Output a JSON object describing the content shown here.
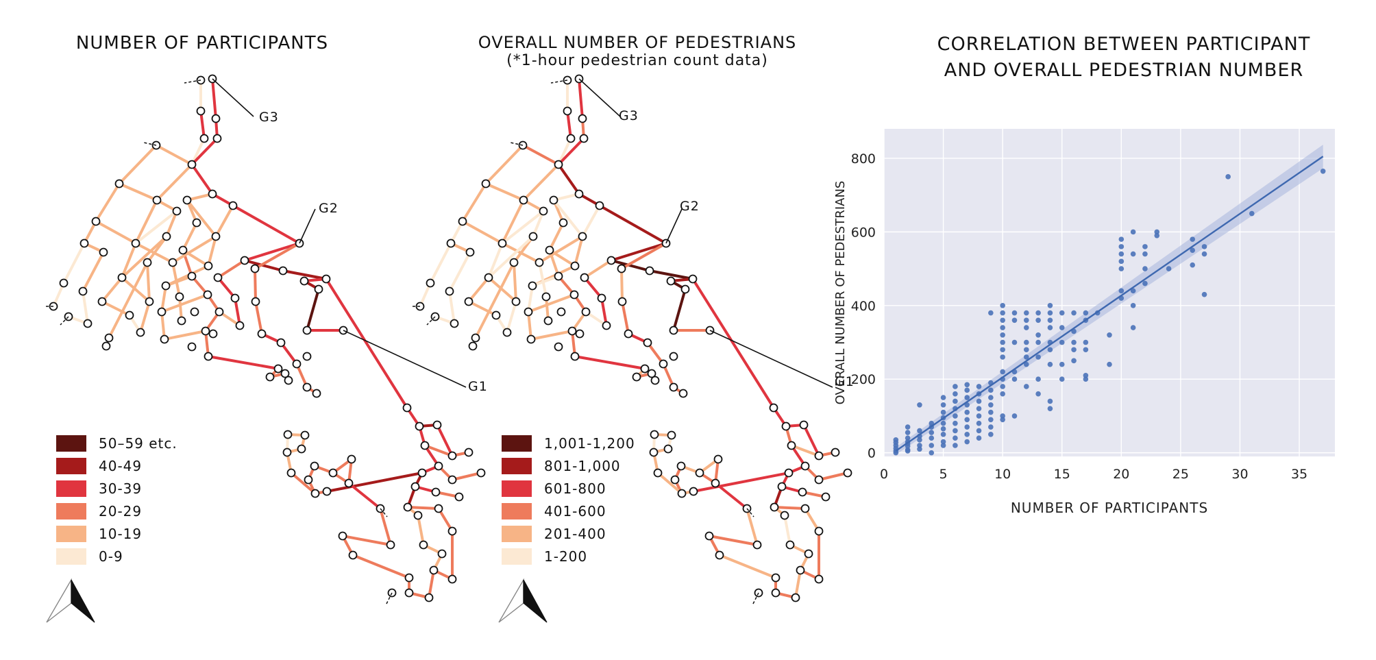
{
  "titles": {
    "map1": "NUMBER OF PARTICIPANTS",
    "map2": "OVERALL NUMBER OF PEDESTRIANS",
    "map2_note": "(*1-hour pedestrian count data)",
    "scatter_line1": "CORRELATION BETWEEN PARTICIPANT",
    "scatter_line2": "AND OVERALL PEDESTRIAN NUMBER"
  },
  "gates": [
    "G1",
    "G2",
    "G3"
  ],
  "legend1": [
    {
      "label": "50–59 etc.",
      "color": "#5c1410"
    },
    {
      "label": "40-49",
      "color": "#a51b1b"
    },
    {
      "label": "30-39",
      "color": "#e0353f"
    },
    {
      "label": "20-29",
      "color": "#ee7b5c"
    },
    {
      "label": "10-19",
      "color": "#f7b486"
    },
    {
      "label": "0-9",
      "color": "#fce9d3"
    }
  ],
  "legend2": [
    {
      "label": "1,001-1,200",
      "color": "#5c1410"
    },
    {
      "label": "801-1,000",
      "color": "#a51b1b"
    },
    {
      "label": "601-800",
      "color": "#e0353f"
    },
    {
      "label": "401-600",
      "color": "#ee7b5c"
    },
    {
      "label": "201-400",
      "color": "#f7b486"
    },
    {
      "label": "1-200",
      "color": "#fce9d3"
    }
  ],
  "chart_data": {
    "type": "scatter",
    "title": "CORRELATION BETWEEN PARTICIPANT AND OVERALL PEDESTRIAN NUMBER",
    "xlabel": "NUMBER OF PARTICIPANTS",
    "ylabel": "OVERALL NUMBER OF PEDESTRIANS",
    "xlim": [
      0,
      38
    ],
    "ylim": [
      -10,
      880
    ],
    "xticks": [
      0,
      5,
      10,
      15,
      20,
      25,
      30,
      35
    ],
    "yticks": [
      0,
      200,
      400,
      600,
      800
    ],
    "grid": true,
    "point_color": "#4a72b8",
    "regression": {
      "x": [
        1,
        37
      ],
      "y": [
        5,
        805
      ]
    },
    "points": [
      [
        1,
        5
      ],
      [
        1,
        12
      ],
      [
        1,
        20
      ],
      [
        1,
        28
      ],
      [
        1,
        35
      ],
      [
        1,
        0
      ],
      [
        2,
        8
      ],
      [
        2,
        18
      ],
      [
        2,
        30
      ],
      [
        2,
        40
      ],
      [
        2,
        55
      ],
      [
        2,
        70
      ],
      [
        2,
        5
      ],
      [
        2,
        25
      ],
      [
        3,
        20
      ],
      [
        3,
        35
      ],
      [
        3,
        45
      ],
      [
        3,
        60
      ],
      [
        3,
        130
      ],
      [
        3,
        10
      ],
      [
        4,
        40
      ],
      [
        4,
        55
      ],
      [
        4,
        70
      ],
      [
        4,
        80
      ],
      [
        4,
        20
      ],
      [
        4,
        0
      ],
      [
        5,
        30
      ],
      [
        5,
        50
      ],
      [
        5,
        65
      ],
      [
        5,
        80
      ],
      [
        5,
        95
      ],
      [
        5,
        110
      ],
      [
        5,
        130
      ],
      [
        5,
        150
      ],
      [
        5,
        20
      ],
      [
        6,
        40
      ],
      [
        6,
        60
      ],
      [
        6,
        80
      ],
      [
        6,
        100
      ],
      [
        6,
        120
      ],
      [
        6,
        140
      ],
      [
        6,
        160
      ],
      [
        6,
        180
      ],
      [
        6,
        20
      ],
      [
        7,
        30
      ],
      [
        7,
        50
      ],
      [
        7,
        70
      ],
      [
        7,
        90
      ],
      [
        7,
        110
      ],
      [
        7,
        130
      ],
      [
        7,
        150
      ],
      [
        7,
        170
      ],
      [
        7,
        185
      ],
      [
        8,
        40
      ],
      [
        8,
        60
      ],
      [
        8,
        80
      ],
      [
        8,
        100
      ],
      [
        8,
        120
      ],
      [
        8,
        140
      ],
      [
        8,
        160
      ],
      [
        8,
        180
      ],
      [
        9,
        50
      ],
      [
        9,
        70
      ],
      [
        9,
        90
      ],
      [
        9,
        110
      ],
      [
        9,
        130
      ],
      [
        9,
        150
      ],
      [
        9,
        170
      ],
      [
        9,
        190
      ],
      [
        9,
        380
      ],
      [
        10,
        90
      ],
      [
        10,
        100
      ],
      [
        10,
        160
      ],
      [
        10,
        180
      ],
      [
        10,
        200
      ],
      [
        10,
        220
      ],
      [
        10,
        260
      ],
      [
        10,
        280
      ],
      [
        10,
        300
      ],
      [
        10,
        320
      ],
      [
        10,
        340
      ],
      [
        10,
        360
      ],
      [
        10,
        380
      ],
      [
        10,
        400
      ],
      [
        11,
        100
      ],
      [
        11,
        200
      ],
      [
        11,
        220
      ],
      [
        11,
        300
      ],
      [
        11,
        360
      ],
      [
        11,
        380
      ],
      [
        12,
        180
      ],
      [
        12,
        240
      ],
      [
        12,
        260
      ],
      [
        12,
        280
      ],
      [
        12,
        300
      ],
      [
        12,
        340
      ],
      [
        12,
        360
      ],
      [
        12,
        380
      ],
      [
        13,
        160
      ],
      [
        13,
        200
      ],
      [
        13,
        260
      ],
      [
        13,
        300
      ],
      [
        13,
        320
      ],
      [
        13,
        360
      ],
      [
        13,
        380
      ],
      [
        14,
        120
      ],
      [
        14,
        140
      ],
      [
        14,
        240
      ],
      [
        14,
        280
      ],
      [
        14,
        300
      ],
      [
        14,
        340
      ],
      [
        14,
        360
      ],
      [
        14,
        380
      ],
      [
        14,
        400
      ],
      [
        15,
        200
      ],
      [
        15,
        240
      ],
      [
        15,
        300
      ],
      [
        15,
        340
      ],
      [
        15,
        380
      ],
      [
        16,
        250
      ],
      [
        16,
        280
      ],
      [
        16,
        300
      ],
      [
        16,
        330
      ],
      [
        16,
        380
      ],
      [
        17,
        200
      ],
      [
        17,
        210
      ],
      [
        17,
        280
      ],
      [
        17,
        300
      ],
      [
        17,
        360
      ],
      [
        17,
        380
      ],
      [
        18,
        380
      ],
      [
        19,
        240
      ],
      [
        19,
        320
      ],
      [
        20,
        420
      ],
      [
        20,
        440
      ],
      [
        20,
        500
      ],
      [
        20,
        520
      ],
      [
        20,
        540
      ],
      [
        20,
        560
      ],
      [
        20,
        580
      ],
      [
        21,
        340
      ],
      [
        21,
        400
      ],
      [
        21,
        440
      ],
      [
        21,
        540
      ],
      [
        21,
        600
      ],
      [
        22,
        460
      ],
      [
        22,
        500
      ],
      [
        22,
        540
      ],
      [
        22,
        560
      ],
      [
        23,
        590
      ],
      [
        23,
        600
      ],
      [
        24,
        500
      ],
      [
        26,
        510
      ],
      [
        26,
        550
      ],
      [
        26,
        580
      ],
      [
        27,
        430
      ],
      [
        27,
        540
      ],
      [
        27,
        560
      ],
      [
        29,
        750
      ],
      [
        31,
        650
      ],
      [
        37,
        765
      ]
    ]
  }
}
